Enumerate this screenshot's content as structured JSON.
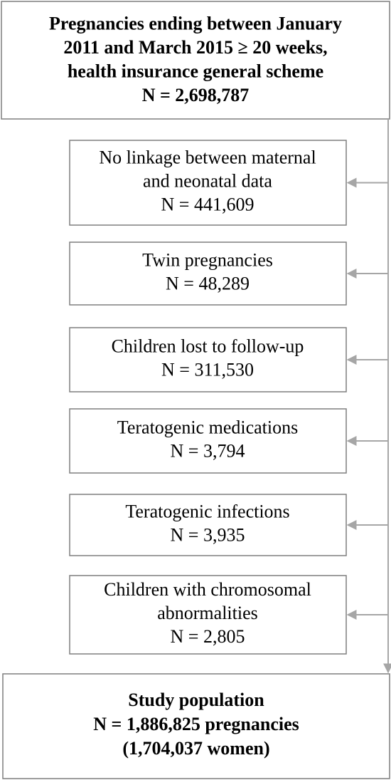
{
  "top": {
    "lines": [
      "Pregnancies ending between January",
      "2011 and March 2015 ≥ 20 weeks,",
      "health insurance general scheme",
      "N = 2,698,787"
    ]
  },
  "exclusions": [
    {
      "lines": [
        "No linkage between maternal",
        "and neonatal data",
        "N = 441,609"
      ]
    },
    {
      "lines": [
        "Twin pregnancies",
        "N = 48,289"
      ]
    },
    {
      "lines": [
        "Children lost to follow-up",
        "N = 311,530"
      ]
    },
    {
      "lines": [
        "Teratogenic medications",
        "N = 3,794"
      ]
    },
    {
      "lines": [
        "Teratogenic infections",
        "N = 3,935"
      ]
    },
    {
      "lines": [
        "Children with chromosomal",
        "abnormalities",
        "N = 2,805"
      ]
    }
  ],
  "bottom": {
    "lines": [
      "Study population",
      "N = 1,886,825 pregnancies",
      "(1,704,037 women)"
    ]
  }
}
